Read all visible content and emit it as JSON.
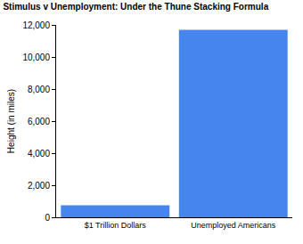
{
  "chart_data": {
    "type": "bar",
    "title": "Stimulus v Unemployment: Under the Thune Stacking Formula",
    "ylabel": "Height (in miles)",
    "categories": [
      "$1 Trillion Dollars",
      "Unemployed Americans"
    ],
    "values": [
      750,
      11700
    ],
    "color": "#4684ee",
    "ylim": [
      0,
      12000
    ],
    "yticks": [
      0,
      {
        "value": 2000,
        "label": "2,000"
      },
      {
        "value": 4000,
        "label": "4,000"
      },
      {
        "value": 6000,
        "label": "6,000"
      },
      {
        "value": 8000,
        "label": "8,000"
      },
      {
        "value": 10000,
        "label": "10,000"
      },
      {
        "value": 12000,
        "label": "12,000"
      }
    ],
    "grid": false
  }
}
